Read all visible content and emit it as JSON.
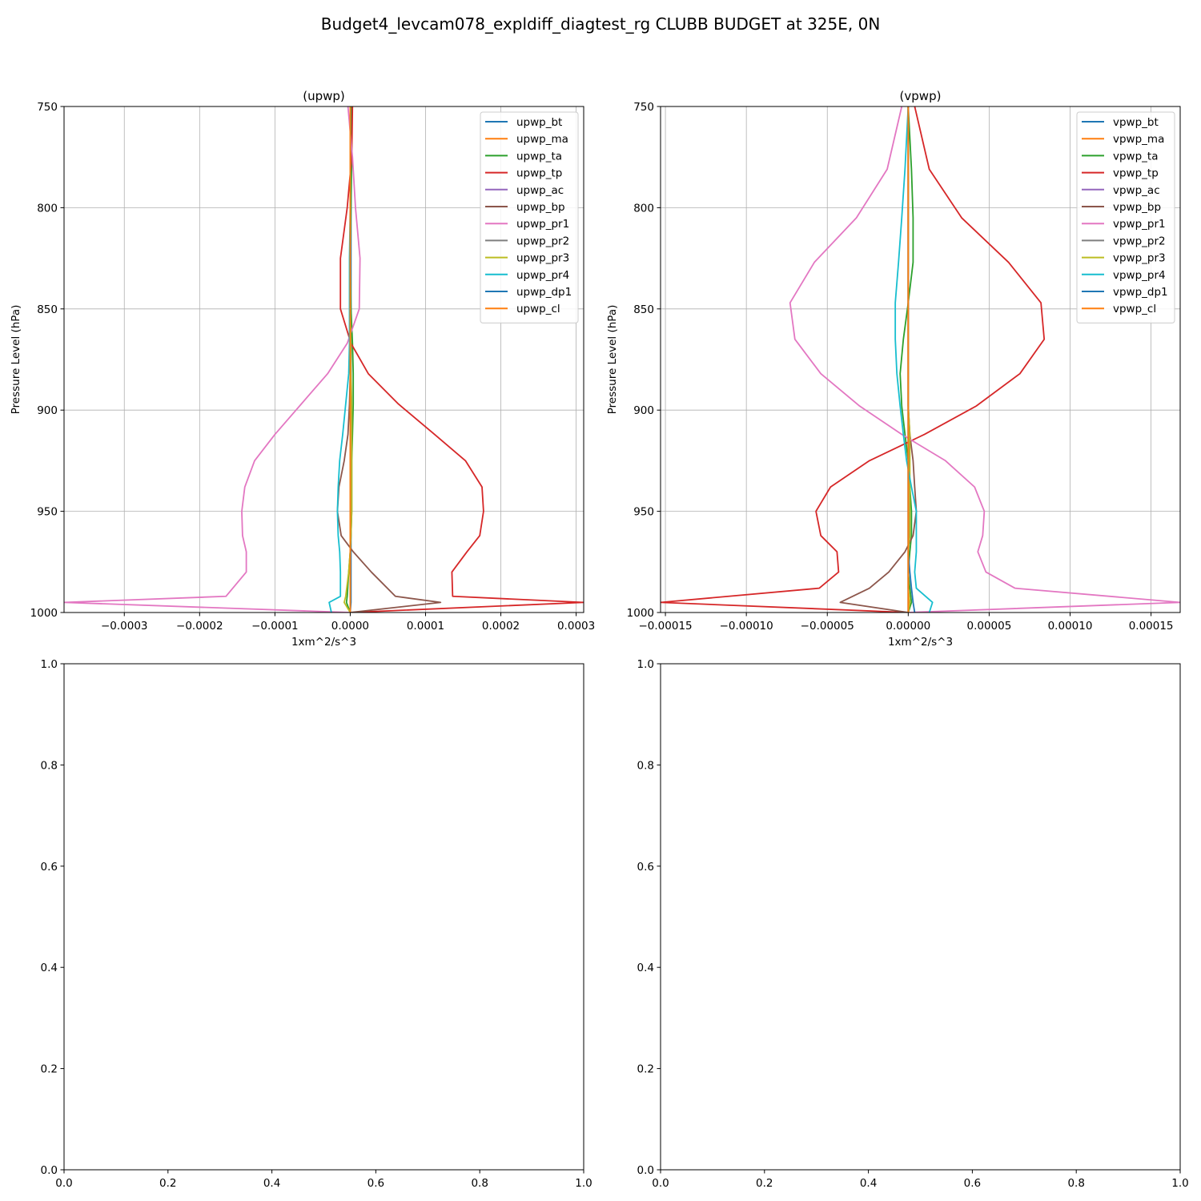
{
  "figure": {
    "suptitle": "Budget4_levcam078_expldiff_diagtest_rg CLUBB BUDGET at 325E, 0N"
  },
  "chart_data": [
    {
      "type": "line",
      "title": "(upwp)",
      "xlabel": "1xm^2/s^3",
      "ylabel": "Pressure Level (hPa)",
      "xlim": [
        -0.00038,
        0.00031
      ],
      "ylim": [
        1000,
        750
      ],
      "y_inverted": true,
      "grid": true,
      "legend": "upper right",
      "xticks": [
        -0.0003,
        -0.0002,
        -0.0001,
        0.0,
        0.0001,
        0.0002,
        0.0003
      ],
      "xtick_labels": [
        "−0.0003",
        "−0.0002",
        "−0.0001",
        "0.0000",
        "0.0001",
        "0.0002",
        "0.0003"
      ],
      "yticks": [
        750,
        800,
        850,
        900,
        950,
        1000
      ],
      "ytick_labels": [
        "750",
        "800",
        "850",
        "900",
        "950",
        "1000"
      ],
      "levels": [
        750,
        775,
        800,
        825,
        850,
        867,
        882,
        897,
        912,
        925,
        938,
        950,
        962,
        970,
        980,
        992,
        995,
        1000
      ],
      "series": [
        {
          "name": "upwp_bt",
          "color": "#1f77b4",
          "values": [
            1e-06,
            1e-06,
            1e-06,
            1e-06,
            1e-06,
            1e-06,
            1e-06,
            1e-06,
            1e-06,
            1e-06,
            1e-06,
            1e-06,
            1e-06,
            1e-06,
            1e-06,
            1e-06,
            1e-06,
            0.0
          ]
        },
        {
          "name": "upwp_ma",
          "color": "#ff7f0e",
          "values": [
            0.0,
            0.0,
            0.0,
            0.0,
            0.0,
            0.0,
            0.0,
            0.0,
            0.0,
            0.0,
            0.0,
            0.0,
            0.0,
            0.0,
            0.0,
            0.0,
            0.0,
            0.0
          ]
        },
        {
          "name": "upwp_ta",
          "color": "#2ca02c",
          "values": [
            2e-06,
            2e-06,
            1e-06,
            0.0,
            1e-06,
            3e-06,
            4e-06,
            4e-06,
            3e-06,
            2e-06,
            2e-06,
            2e-06,
            1e-06,
            0.0,
            -2e-06,
            -4e-06,
            -5e-06,
            0.0
          ]
        },
        {
          "name": "upwp_tp",
          "color": "#d62728",
          "values": [
            3e-06,
            2e-06,
            -4e-06,
            -1.3e-05,
            -1.3e-05,
            1e-06,
            2.4e-05,
            6.4e-05,
            0.000112,
            0.000153,
            0.000175,
            0.000177,
            0.000172,
            0.000155,
            0.000135,
            0.000136,
            0.00031,
            0.0
          ]
        },
        {
          "name": "upwp_ac",
          "color": "#9467bd",
          "values": [
            0.0,
            0.0,
            0.0,
            0.0,
            0.0,
            0.0,
            0.0,
            0.0,
            0.0,
            0.0,
            0.0,
            0.0,
            0.0,
            0.0,
            0.0,
            0.0,
            0.0,
            0.0
          ]
        },
        {
          "name": "upwp_bp",
          "color": "#8c564b",
          "values": [
            0.0,
            0.0,
            0.0,
            0.0,
            0.0,
            0.0,
            0.0,
            -1e-06,
            -3e-06,
            -8e-06,
            -1.5e-05,
            -1.7e-05,
            -1.2e-05,
            4e-06,
            2.8e-05,
            6e-05,
            0.00012,
            0.0
          ]
        },
        {
          "name": "upwp_pr1",
          "color": "#e377c2",
          "values": [
            -3e-06,
            3e-06,
            7e-06,
            1.3e-05,
            1.2e-05,
            -4e-06,
            -3e-05,
            -6.5e-05,
            -0.0001,
            -0.000127,
            -0.00014,
            -0.000144,
            -0.000143,
            -0.000138,
            -0.000138,
            -0.000165,
            -0.00038,
            0.0
          ]
        },
        {
          "name": "upwp_pr2",
          "color": "#7f7f7f",
          "values": [
            0.0,
            0.0,
            0.0,
            0.0,
            0.0,
            0.0,
            0.0,
            0.0,
            0.0,
            0.0,
            0.0,
            0.0,
            0.0,
            0.0,
            0.0,
            0.0,
            0.0,
            0.0
          ]
        },
        {
          "name": "upwp_pr3",
          "color": "#bcbd22",
          "values": [
            0.0,
            0.0,
            0.0,
            0.0,
            0.0,
            1e-06,
            1e-06,
            2e-06,
            2e-06,
            2e-06,
            2e-06,
            2e-06,
            1e-06,
            0.0,
            -2e-06,
            -6e-06,
            -8e-06,
            0.0
          ]
        },
        {
          "name": "upwp_pr4",
          "color": "#17becf",
          "values": [
            0.0,
            0.0,
            0.0,
            -1e-06,
            -1e-06,
            -1e-06,
            -2e-06,
            -6e-06,
            -1e-05,
            -1.4e-05,
            -1.6e-05,
            -1.7e-05,
            -1.6e-05,
            -1.4e-05,
            -1.3e-05,
            -1.3e-05,
            -2.8e-05,
            -2.5e-05
          ]
        },
        {
          "name": "upwp_dp1",
          "color": "#1f77b4",
          "values": [
            0.0,
            0.0,
            0.0,
            0.0,
            0.0,
            0.0,
            0.0,
            0.0,
            0.0,
            0.0,
            0.0,
            0.0,
            0.0,
            0.0,
            0.0,
            0.0,
            0.0,
            0.0
          ]
        },
        {
          "name": "upwp_cl",
          "color": "#ff7f0e",
          "values": [
            0.0,
            0.0,
            0.0,
            0.0,
            0.0,
            0.0,
            0.0,
            0.0,
            0.0,
            0.0,
            0.0,
            0.0,
            0.0,
            0.0,
            0.0,
            0.0,
            0.0,
            0.0
          ]
        }
      ]
    },
    {
      "type": "line",
      "title": "(vpwp)",
      "xlabel": "1xm^2/s^3",
      "ylabel": "Pressure Level (hPa)",
      "xlim": [
        -0.000153,
        0.000168
      ],
      "ylim": [
        1000,
        750
      ],
      "y_inverted": true,
      "grid": true,
      "legend": "upper right",
      "xticks": [
        -0.00015,
        -0.0001,
        -5e-05,
        0.0,
        5e-05,
        0.0001,
        0.00015
      ],
      "xtick_labels": [
        "−0.00015",
        "−0.00010",
        "−0.00005",
        "0.00000",
        "0.00005",
        "0.00010",
        "0.00015"
      ],
      "yticks": [
        750,
        800,
        850,
        900,
        950,
        1000
      ],
      "ytick_labels": [
        "750",
        "800",
        "850",
        "900",
        "950",
        "1000"
      ],
      "levels": [
        750,
        781,
        805,
        827,
        847,
        865,
        882,
        898,
        912,
        925,
        938,
        950,
        962,
        970,
        980,
        988,
        995,
        1000
      ],
      "series": [
        {
          "name": "vpwp_bt",
          "color": "#1f77b4",
          "values": [
            0.0,
            0.0,
            0.0,
            0.0,
            0.0,
            0.0,
            0.0,
            0.0,
            0.0,
            0.0,
            0.0,
            0.0,
            0.0,
            0.0,
            0.0,
            0.0,
            0.0,
            0.0
          ]
        },
        {
          "name": "vpwp_ma",
          "color": "#ff7f0e",
          "values": [
            0.0,
            0.0,
            0.0,
            0.0,
            0.0,
            0.0,
            0.0,
            0.0,
            0.0,
            0.0,
            0.0,
            0.0,
            0.0,
            0.0,
            0.0,
            0.0,
            0.0,
            0.0
          ]
        },
        {
          "name": "vpwp_ta",
          "color": "#2ca02c",
          "values": [
            0.0,
            2e-06,
            3e-06,
            3e-06,
            0.0,
            -3e-06,
            -5e-06,
            -4e-06,
            -2e-06,
            0.0,
            1e-06,
            2e-06,
            2e-06,
            1e-06,
            0.0,
            1e-06,
            2e-06,
            0.0
          ]
        },
        {
          "name": "vpwp_tp",
          "color": "#d62728",
          "values": [
            4e-06,
            1.3e-05,
            3.3e-05,
            6.2e-05,
            8.2e-05,
            8.4e-05,
            6.9e-05,
            4.2e-05,
            1e-05,
            -2.4e-05,
            -4.8e-05,
            -5.7e-05,
            -5.4e-05,
            -4.4e-05,
            -4.3e-05,
            -5.5e-05,
            -0.000153,
            0.0
          ]
        },
        {
          "name": "vpwp_ac",
          "color": "#9467bd",
          "values": [
            0.0,
            0.0,
            0.0,
            0.0,
            0.0,
            0.0,
            0.0,
            0.0,
            0.0,
            0.0,
            0.0,
            0.0,
            0.0,
            0.0,
            0.0,
            0.0,
            0.0,
            0.0
          ]
        },
        {
          "name": "vpwp_bp",
          "color": "#8c564b",
          "values": [
            0.0,
            0.0,
            0.0,
            0.0,
            0.0,
            0.0,
            0.0,
            0.0,
            1e-06,
            3e-06,
            4e-06,
            5e-06,
            3e-06,
            -2e-06,
            -1.2e-05,
            -2.4e-05,
            -4.2e-05,
            0.0
          ]
        },
        {
          "name": "vpwp_pr1",
          "color": "#e377c2",
          "values": [
            -4e-06,
            -1.3e-05,
            -3.2e-05,
            -5.8e-05,
            -7.3e-05,
            -7e-05,
            -5.4e-05,
            -3e-05,
            -4e-06,
            2.3e-05,
            4.1e-05,
            4.7e-05,
            4.6e-05,
            4.3e-05,
            4.8e-05,
            6.6e-05,
            0.000168,
            0.0
          ]
        },
        {
          "name": "vpwp_pr2",
          "color": "#7f7f7f",
          "values": [
            0.0,
            0.0,
            0.0,
            0.0,
            0.0,
            0.0,
            0.0,
            0.0,
            0.0,
            0.0,
            0.0,
            0.0,
            0.0,
            0.0,
            0.0,
            0.0,
            0.0,
            0.0
          ]
        },
        {
          "name": "vpwp_pr3",
          "color": "#bcbd22",
          "values": [
            0.0,
            0.0,
            0.0,
            0.0,
            0.0,
            0.0,
            0.0,
            0.0,
            1e-06,
            1e-06,
            1e-06,
            1e-06,
            1e-06,
            0.0,
            0.0,
            0.0,
            1e-06,
            0.0
          ]
        },
        {
          "name": "vpwp_pr4",
          "color": "#17becf",
          "values": [
            0.0,
            -2e-06,
            -4e-06,
            -6e-06,
            -8e-06,
            -8e-06,
            -7e-06,
            -5e-06,
            -3e-06,
            -1e-06,
            2e-06,
            5e-06,
            5e-06,
            5e-06,
            4e-06,
            5e-06,
            1.5e-05,
            1.3e-05
          ]
        },
        {
          "name": "vpwp_dp1",
          "color": "#1f77b4",
          "values": [
            0.0,
            0.0,
            0.0,
            0.0,
            0.0,
            0.0,
            0.0,
            0.0,
            0.0,
            0.0,
            0.0,
            0.0,
            0.0,
            0.0,
            1e-06,
            2e-06,
            3e-06,
            4e-06
          ]
        },
        {
          "name": "vpwp_cl",
          "color": "#ff7f0e",
          "values": [
            0.0,
            0.0,
            0.0,
            0.0,
            0.0,
            0.0,
            0.0,
            0.0,
            0.0,
            0.0,
            0.0,
            0.0,
            0.0,
            0.0,
            0.0,
            0.0,
            0.0,
            0.0
          ]
        }
      ]
    },
    {
      "type": "line",
      "title": "",
      "xlim": [
        0,
        1
      ],
      "ylim": [
        0,
        1
      ],
      "grid": false,
      "xticks": [
        0.0,
        0.2,
        0.4,
        0.6,
        0.8,
        1.0
      ],
      "xtick_labels": [
        "0.0",
        "0.2",
        "0.4",
        "0.6",
        "0.8",
        "1.0"
      ],
      "yticks": [
        0.0,
        0.2,
        0.4,
        0.6,
        0.8,
        1.0
      ],
      "ytick_labels": [
        "0.0",
        "0.2",
        "0.4",
        "0.6",
        "0.8",
        "1.0"
      ],
      "series": []
    },
    {
      "type": "line",
      "title": "",
      "xlim": [
        0,
        1
      ],
      "ylim": [
        0,
        1
      ],
      "grid": false,
      "xticks": [
        0.0,
        0.2,
        0.4,
        0.6,
        0.8,
        1.0
      ],
      "xtick_labels": [
        "0.0",
        "0.2",
        "0.4",
        "0.6",
        "0.8",
        "1.0"
      ],
      "yticks": [
        0.0,
        0.2,
        0.4,
        0.6,
        0.8,
        1.0
      ],
      "ytick_labels": [
        "0.0",
        "0.2",
        "0.4",
        "0.6",
        "0.8",
        "1.0"
      ],
      "series": []
    }
  ]
}
